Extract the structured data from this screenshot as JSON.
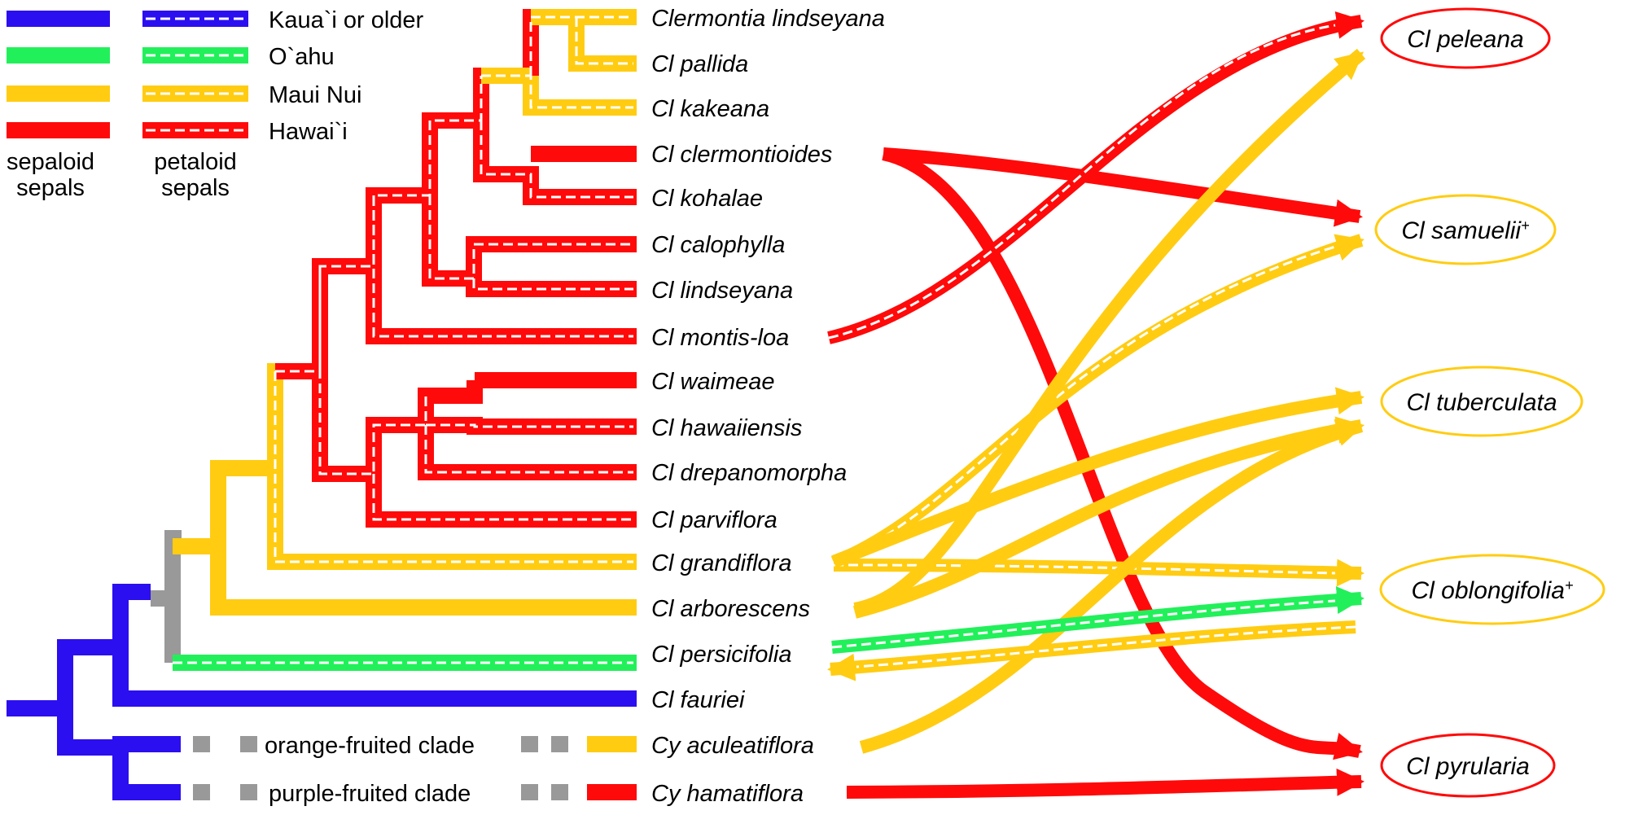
{
  "colors": {
    "kauai": "#2b0ff0",
    "oahu": "#22f05a",
    "maui": "#ffcc12",
    "hawaii": "#ff0a0a",
    "gray": "#999999",
    "dash": "#ffffff"
  },
  "legend": {
    "rows": [
      {
        "label": "Kaua`i or older",
        "color": "kauai"
      },
      {
        "label": "O`ahu",
        "color": "oahu"
      },
      {
        "label": "Maui Nui",
        "color": "maui"
      },
      {
        "label": "Hawai`i",
        "color": "hawaii"
      }
    ],
    "solid_caption_line1": "sepaloid",
    "solid_caption_line2": "sepals",
    "dashed_caption_line1": "petaloid",
    "dashed_caption_line2": "sepals"
  },
  "taxa": [
    "Clermontia lindseyana",
    "Cl pallida",
    "Cl kakeana",
    "Cl clermontioides",
    "Cl kohalae",
    "Cl calophylla",
    "Cl lindseyana",
    "Cl montis-loa",
    "Cl waimeae",
    "Cl hawaiiensis",
    "Cl drepanomorpha",
    "Cl parviflora",
    "Cl grandiflora",
    "Cl arborescens",
    "Cl persicifolia",
    "Cl fauriei",
    "Cy aculeatiflora",
    "Cy hamatiflora"
  ],
  "clades": {
    "orange": "orange-fruited clade",
    "purple": "purple-fruited clade"
  },
  "targets": [
    {
      "label": "Cl peleana",
      "sup": "",
      "border": "hawaii"
    },
    {
      "label": "Cl samuelii",
      "sup": "+",
      "border": "maui"
    },
    {
      "label": "Cl tuberculata",
      "sup": "",
      "border": "maui"
    },
    {
      "label": "Cl oblongifolia",
      "sup": "+",
      "border": "maui"
    },
    {
      "label": "Cl pyrularia",
      "sup": "",
      "border": "hawaii"
    }
  ]
}
